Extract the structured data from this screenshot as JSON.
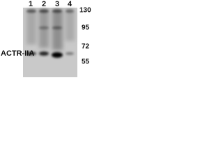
{
  "lanes": [
    "1",
    "2",
    "3",
    "4"
  ],
  "markers": [
    "130",
    "95",
    "72",
    "55"
  ],
  "label": "ACTR-IIA"
}
